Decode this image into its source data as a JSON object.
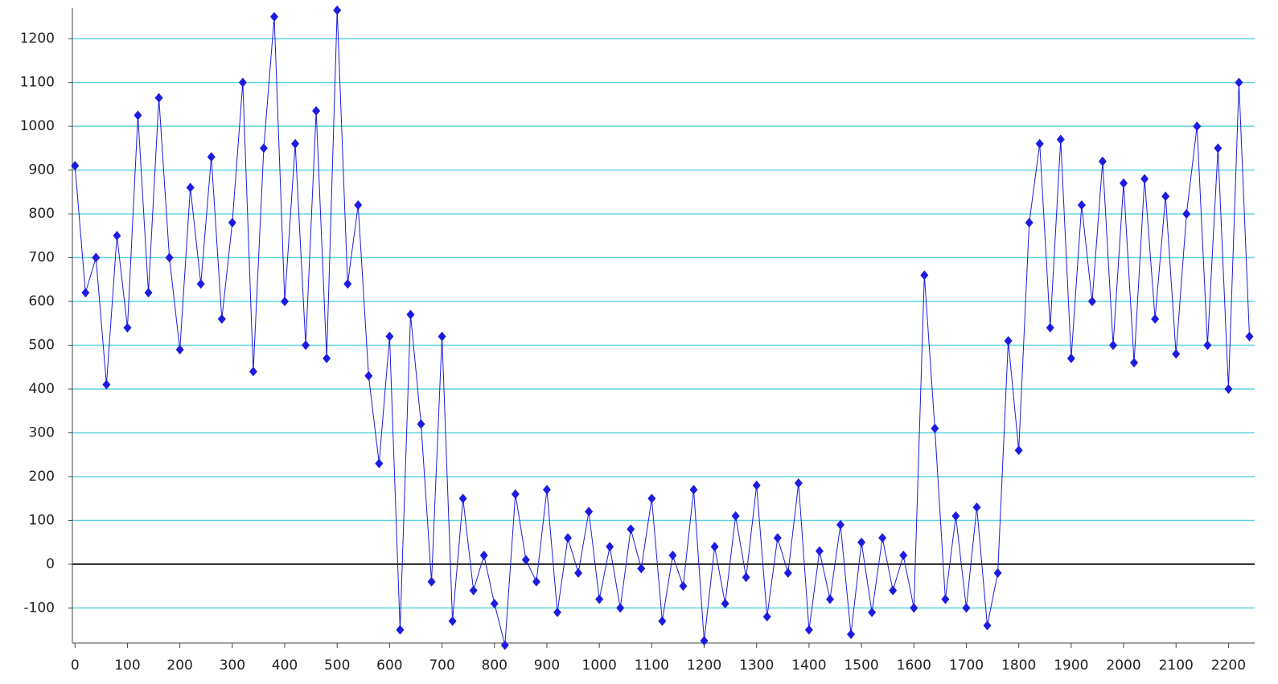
{
  "chart_data": {
    "type": "line",
    "x": [
      0,
      20,
      40,
      60,
      80,
      100,
      120,
      140,
      160,
      180,
      200,
      220,
      240,
      260,
      280,
      300,
      320,
      340,
      360,
      380,
      400,
      420,
      440,
      460,
      480,
      500,
      520,
      540,
      560,
      580,
      600,
      620,
      640,
      660,
      680,
      700,
      720,
      740,
      760,
      780,
      800,
      820,
      840,
      860,
      880,
      900,
      920,
      940,
      960,
      980,
      1000,
      1020,
      1040,
      1060,
      1080,
      1100,
      1120,
      1140,
      1160,
      1180,
      1200,
      1220,
      1240,
      1260,
      1280,
      1300,
      1320,
      1340,
      1360,
      1380,
      1400,
      1420,
      1440,
      1460,
      1480,
      1500,
      1520,
      1540,
      1560,
      1580,
      1600,
      1620,
      1640,
      1660,
      1680,
      1700,
      1720,
      1740,
      1760,
      1780,
      1800,
      1820,
      1840,
      1860,
      1880,
      1900,
      1920,
      1940,
      1960,
      1980,
      2000,
      2020,
      2040,
      2060,
      2080,
      2100,
      2120,
      2140,
      2160,
      2180,
      2200,
      2220,
      2240
    ],
    "series": [
      {
        "color": "#1c1ce0",
        "values": [
          910,
          620,
          700,
          410,
          750,
          540,
          1025,
          620,
          1065,
          700,
          490,
          860,
          640,
          930,
          560,
          780,
          1100,
          440,
          950,
          1250,
          600,
          960,
          500,
          1035,
          470,
          1265,
          640,
          820,
          430,
          230,
          520,
          -150,
          570,
          320,
          -40,
          520,
          -130,
          150,
          -60,
          20,
          -90,
          -185,
          160,
          10,
          -40,
          170,
          -110,
          60,
          -20,
          120,
          -80,
          40,
          -100,
          80,
          -10,
          150,
          -130,
          20,
          -50,
          170,
          -175,
          40,
          -90,
          110,
          -30,
          180,
          -120,
          60,
          -20,
          185,
          -150,
          30,
          -80,
          90,
          -160,
          50,
          -110,
          60,
          -60,
          20,
          -100,
          660,
          310,
          -80,
          110,
          -100,
          130,
          -140,
          -20,
          510,
          260,
          780,
          960,
          540,
          970,
          470,
          820,
          600,
          920,
          500,
          870,
          460,
          880,
          560,
          840,
          480,
          800,
          1000,
          500,
          950,
          400,
          1100,
          520
        ]
      }
    ],
    "xlim": [
      -5,
      2250
    ],
    "ylim": [
      -180,
      1270
    ],
    "xticks": [
      0,
      100,
      200,
      300,
      400,
      500,
      600,
      700,
      800,
      900,
      1000,
      1100,
      1200,
      1300,
      1400,
      1500,
      1600,
      1700,
      1800,
      1900,
      2000,
      2100,
      2200
    ],
    "yticks": [
      -100,
      0,
      100,
      200,
      300,
      400,
      500,
      600,
      700,
      800,
      900,
      1000,
      1100,
      1200
    ],
    "grid": true,
    "grid_color": "#5fd3e0",
    "zero_line": true
  }
}
